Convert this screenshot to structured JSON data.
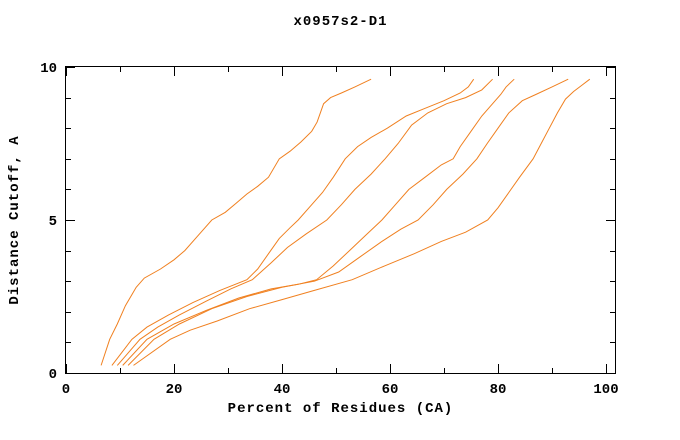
{
  "title": "x0957s2-D1",
  "chart_data": {
    "type": "line",
    "title": "x0957s2-D1",
    "xlabel": "Percent of Residues (CA)",
    "ylabel": "Distance Cutoff, A",
    "xlim": [
      0,
      100
    ],
    "ylim": [
      0,
      10
    ],
    "xticks_major": [
      0,
      20,
      40,
      60,
      80,
      100
    ],
    "xtick_labels": [
      "0",
      "20",
      "40",
      "60",
      "80",
      "100"
    ],
    "xticks_minor": [
      10,
      30,
      50,
      70,
      90
    ],
    "yticks_major": [
      0,
      5,
      10
    ],
    "ytick_labels": [
      "0",
      "5",
      "10"
    ],
    "yticks_minor": [
      1,
      2,
      3,
      4,
      6,
      7,
      8,
      9
    ],
    "grid": false,
    "legend": "none",
    "line_color": "#f08020",
    "axis_color": "#000000",
    "background": "#ffffff",
    "series": [
      {
        "name": "curve-1",
        "points": [
          [
            6.5,
            0.25
          ],
          [
            8.1,
            1.1
          ],
          [
            9.5,
            1.6
          ],
          [
            11,
            2.2
          ],
          [
            13,
            2.8
          ],
          [
            14.5,
            3.1
          ],
          [
            17.5,
            3.4
          ],
          [
            20,
            3.7
          ],
          [
            22,
            4.0
          ],
          [
            24.5,
            4.5
          ],
          [
            27,
            5.0
          ],
          [
            29.5,
            5.25
          ],
          [
            31.5,
            5.55
          ],
          [
            33.5,
            5.85
          ],
          [
            35.5,
            6.1
          ],
          [
            37.5,
            6.4
          ],
          [
            39.5,
            7.0
          ],
          [
            41.5,
            7.25
          ],
          [
            43.5,
            7.55
          ],
          [
            45.5,
            7.9
          ],
          [
            46.5,
            8.2
          ],
          [
            47.7,
            8.8
          ],
          [
            49,
            9.0
          ],
          [
            51,
            9.15
          ],
          [
            53.5,
            9.35
          ],
          [
            56.5,
            9.6
          ]
        ]
      },
      {
        "name": "curve-2",
        "points": [
          [
            8.5,
            0.25
          ],
          [
            12.2,
            1.1
          ],
          [
            15,
            1.5
          ],
          [
            19,
            1.9
          ],
          [
            23.5,
            2.3
          ],
          [
            28.5,
            2.7
          ],
          [
            33.5,
            3.05
          ],
          [
            35.5,
            3.4
          ],
          [
            37.5,
            3.9
          ],
          [
            39.5,
            4.4
          ],
          [
            41.5,
            4.75
          ],
          [
            43,
            5.0
          ],
          [
            45.5,
            5.5
          ],
          [
            47.5,
            5.9
          ],
          [
            49.5,
            6.4
          ],
          [
            51.7,
            7.0
          ],
          [
            54,
            7.4
          ],
          [
            56.5,
            7.7
          ],
          [
            59.5,
            8.0
          ],
          [
            63,
            8.4
          ],
          [
            66.5,
            8.65
          ],
          [
            70,
            8.9
          ],
          [
            73,
            9.15
          ],
          [
            74.5,
            9.35
          ],
          [
            75.5,
            9.6
          ]
        ]
      },
      {
        "name": "curve-3",
        "points": [
          [
            9.5,
            0.25
          ],
          [
            13.7,
            1.1
          ],
          [
            17,
            1.5
          ],
          [
            21,
            1.9
          ],
          [
            26,
            2.35
          ],
          [
            30.5,
            2.75
          ],
          [
            34.5,
            3.05
          ],
          [
            38,
            3.6
          ],
          [
            41,
            4.1
          ],
          [
            44.5,
            4.55
          ],
          [
            48.3,
            5.0
          ],
          [
            51,
            5.5
          ],
          [
            53.5,
            6.0
          ],
          [
            56.5,
            6.5
          ],
          [
            59.1,
            7.0
          ],
          [
            61.5,
            7.5
          ],
          [
            64,
            8.1
          ],
          [
            67,
            8.5
          ],
          [
            70.5,
            8.8
          ],
          [
            74,
            9.0
          ],
          [
            77,
            9.25
          ],
          [
            79,
            9.6
          ]
        ]
      },
      {
        "name": "curve-4",
        "points": [
          [
            10.5,
            0.25
          ],
          [
            15,
            1.1
          ],
          [
            20,
            1.6
          ],
          [
            26,
            2.05
          ],
          [
            32,
            2.45
          ],
          [
            38,
            2.75
          ],
          [
            43,
            2.9
          ],
          [
            46.4,
            3.05
          ],
          [
            49.5,
            3.5
          ],
          [
            52.5,
            4.0
          ],
          [
            55.5,
            4.5
          ],
          [
            58.5,
            5.0
          ],
          [
            61,
            5.5
          ],
          [
            63.5,
            6.0
          ],
          [
            66.5,
            6.4
          ],
          [
            69.5,
            6.8
          ],
          [
            71.7,
            7.0
          ],
          [
            73,
            7.4
          ],
          [
            75,
            7.9
          ],
          [
            77,
            8.4
          ],
          [
            79,
            8.8
          ],
          [
            80.5,
            9.1
          ],
          [
            81.5,
            9.35
          ],
          [
            83,
            9.6
          ]
        ]
      },
      {
        "name": "curve-5",
        "points": [
          [
            11.5,
            0.25
          ],
          [
            16.3,
            1.1
          ],
          [
            21,
            1.6
          ],
          [
            27,
            2.1
          ],
          [
            33.5,
            2.5
          ],
          [
            40,
            2.8
          ],
          [
            46,
            3.0
          ],
          [
            50.5,
            3.3
          ],
          [
            54.5,
            3.8
          ],
          [
            58.5,
            4.3
          ],
          [
            62,
            4.7
          ],
          [
            65.2,
            5.0
          ],
          [
            68,
            5.5
          ],
          [
            70.5,
            6.0
          ],
          [
            73.5,
            6.5
          ],
          [
            76.1,
            7.0
          ],
          [
            78,
            7.5
          ],
          [
            80,
            8.0
          ],
          [
            82,
            8.5
          ],
          [
            84.5,
            8.9
          ],
          [
            87,
            9.1
          ],
          [
            90,
            9.35
          ],
          [
            93,
            9.6
          ]
        ]
      },
      {
        "name": "curve-6",
        "points": [
          [
            12.5,
            0.25
          ],
          [
            19.3,
            1.1
          ],
          [
            23,
            1.4
          ],
          [
            28,
            1.7
          ],
          [
            34,
            2.1
          ],
          [
            40,
            2.4
          ],
          [
            46,
            2.7
          ],
          [
            53,
            3.05
          ],
          [
            59,
            3.5
          ],
          [
            64.5,
            3.9
          ],
          [
            69.5,
            4.3
          ],
          [
            74,
            4.6
          ],
          [
            78.1,
            5.0
          ],
          [
            80,
            5.4
          ],
          [
            82,
            5.9
          ],
          [
            84,
            6.4
          ],
          [
            86.5,
            7.0
          ],
          [
            88,
            7.5
          ],
          [
            89.5,
            8.0
          ],
          [
            91,
            8.5
          ],
          [
            92.5,
            8.95
          ],
          [
            94,
            9.2
          ],
          [
            95.5,
            9.4
          ],
          [
            97,
            9.6
          ]
        ]
      }
    ]
  }
}
